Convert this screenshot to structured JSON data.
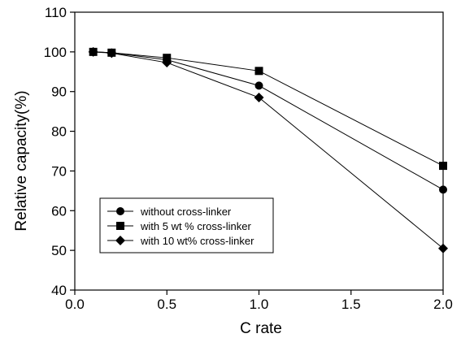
{
  "chart_data": {
    "type": "line",
    "title": "",
    "xlabel": "C rate",
    "ylabel": "Relative capacity(%)",
    "xlim": [
      0.0,
      2.0
    ],
    "ylim": [
      40,
      110
    ],
    "xticks": [
      "0.0",
      "0.5",
      "1.0",
      "1.5",
      "2.0"
    ],
    "yticks": [
      "40",
      "50",
      "60",
      "70",
      "80",
      "90",
      "100",
      "110"
    ],
    "grid": false,
    "legend_position": "bottom-left",
    "series": [
      {
        "name": "without cross-linker",
        "marker": "circle",
        "x": [
          0.1,
          0.2,
          0.5,
          1.0,
          2.0
        ],
        "y": [
          100,
          99.8,
          98.0,
          91.5,
          65.3
        ]
      },
      {
        "name": "with 5 wt % cross-linker",
        "marker": "square",
        "x": [
          0.1,
          0.2,
          0.5,
          1.0,
          2.0
        ],
        "y": [
          100,
          99.8,
          98.5,
          95.2,
          71.3
        ]
      },
      {
        "name": "with 10 wt% cross-linker",
        "marker": "diamond",
        "x": [
          0.1,
          0.2,
          0.5,
          1.0,
          2.0
        ],
        "y": [
          100,
          99.7,
          97.3,
          88.5,
          50.5
        ]
      }
    ]
  }
}
